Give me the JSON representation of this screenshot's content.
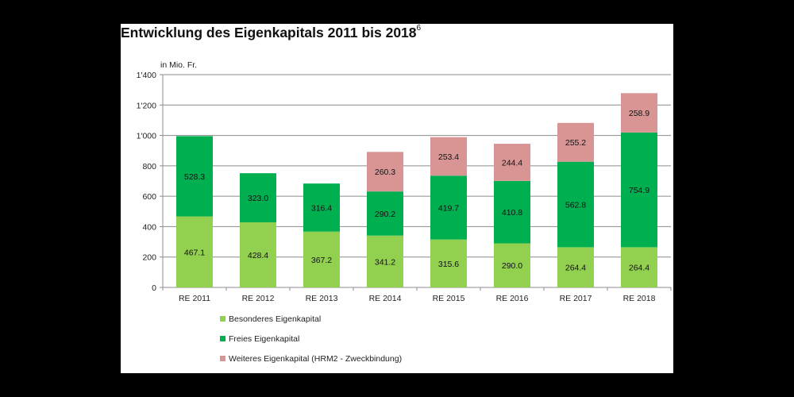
{
  "title": "Entwicklung des Eigenkapitals 2011 bis 2018",
  "title_footnote": "6",
  "chart_data": {
    "type": "bar",
    "stacked": true,
    "title": "Entwicklung des Eigenkapitals 2011 bis 2018",
    "ylabel": "in Mio. Fr.",
    "xlabel": "",
    "ylim": [
      0,
      1400
    ],
    "yticks": [
      0,
      200,
      400,
      600,
      800,
      1000,
      1200,
      1400
    ],
    "ytick_labels": [
      "0",
      "200",
      "400",
      "600",
      "800",
      "1'000",
      "1'200",
      "1'400"
    ],
    "grid": true,
    "legend_position": "bottom",
    "categories": [
      "RE 2011",
      "RE 2012",
      "RE 2013",
      "RE 2014",
      "RE 2015",
      "RE 2016",
      "RE 2017",
      "RE 2018"
    ],
    "series": [
      {
        "name": "Besonderes Eigenkapital",
        "color": "#92d050",
        "values": [
          467.1,
          428.4,
          367.2,
          341.2,
          315.6,
          290.0,
          264.4,
          264.4
        ],
        "labels": [
          "467.1",
          "428.4",
          "367.2",
          "341.2",
          "315.6",
          "290.0",
          "264.4",
          "264.4"
        ]
      },
      {
        "name": "Freies Eigenkapital",
        "color": "#00b050",
        "values": [
          528.3,
          323.0,
          316.4,
          290.2,
          419.7,
          410.8,
          562.8,
          754.9
        ],
        "labels": [
          "528.3",
          "323.0",
          "316.4",
          "290.2",
          "419.7",
          "410.8",
          "562.8",
          "754.9"
        ]
      },
      {
        "name": "Weiteres Eigenkapital (HRM2 - Zweckbindung)",
        "color": "#d99594",
        "values": [
          null,
          null,
          null,
          260.3,
          253.4,
          244.4,
          255.2,
          258.9
        ],
        "labels": [
          null,
          null,
          null,
          "260.3",
          "253.4",
          "244.4",
          "255.2",
          "258.9"
        ]
      }
    ]
  }
}
